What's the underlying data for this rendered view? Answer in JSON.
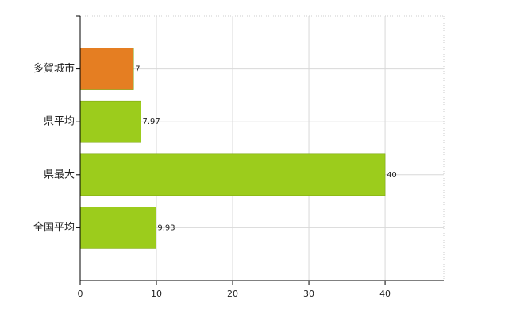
{
  "chart_data": {
    "type": "hbar",
    "categories": [
      "多賀城市",
      "県平均",
      "県最大",
      "全国平均"
    ],
    "values": [
      7,
      7.97,
      40,
      9.93
    ],
    "colors": [
      "#e57e22",
      "#9ccc1c",
      "#9ccc1c",
      "#9ccc1c"
    ],
    "xlim": [
      0,
      47.7
    ],
    "xticks": [
      0,
      10,
      20,
      30,
      40
    ],
    "grid": true
  }
}
